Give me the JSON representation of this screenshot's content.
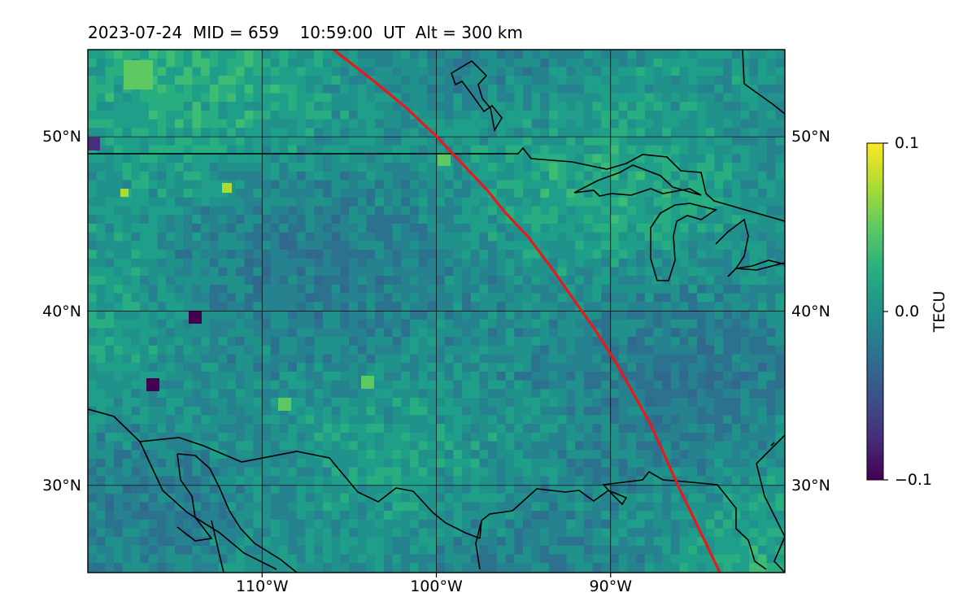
{
  "title": "2023-07-24  MID = 659    10:59:00  UT  Alt = 300 km",
  "map": {
    "lon_range": [
      -120,
      -80
    ],
    "lat_range": [
      25,
      55
    ],
    "x_ticks": [
      {
        "lon": -110,
        "label": "110°W"
      },
      {
        "lon": -100,
        "label": "100°W"
      },
      {
        "lon": -90,
        "label": "90°W"
      }
    ],
    "y_ticks": [
      {
        "lat": 50,
        "label": "50°N"
      },
      {
        "lat": 40,
        "label": "40°N"
      },
      {
        "lat": 30,
        "label": "30°N"
      }
    ],
    "grid": true,
    "track_color": "#e41a1c"
  },
  "colorbar": {
    "label": "TECU",
    "min": -0.1,
    "max": 0.1,
    "ticks": [
      {
        "value": 0.1,
        "label": "0.1"
      },
      {
        "value": 0.0,
        "label": "0.0"
      },
      {
        "value": -0.1,
        "label": "−0.1"
      }
    ],
    "colormap": "viridis"
  }
}
